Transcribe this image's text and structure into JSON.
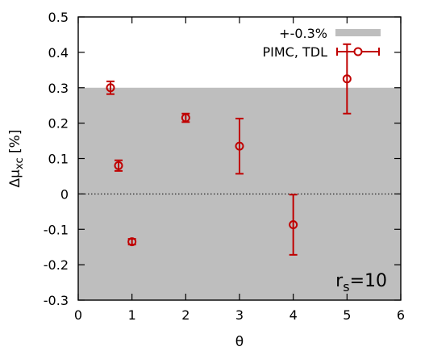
{
  "chart_data": {
    "type": "scatter",
    "title": "",
    "xlabel": "θ",
    "ylabel_main": "Δμ",
    "ylabel_sub": "xc",
    "ylabel_suffix": " [%]",
    "xlim": [
      0,
      6
    ],
    "ylim": [
      -0.3,
      0.5
    ],
    "x_ticks": [
      0,
      1,
      2,
      3,
      4,
      5,
      6
    ],
    "x_tick_labels": [
      "0",
      "1",
      "2",
      "3",
      "4",
      "5",
      "6"
    ],
    "y_ticks": [
      -0.3,
      -0.2,
      -0.1,
      0,
      0.1,
      0.2,
      0.3,
      0.4,
      0.5
    ],
    "y_tick_labels": [
      "-0.3",
      "-0.2",
      "-0.1",
      "0",
      "0.1",
      "0.2",
      "0.3",
      "0.4",
      "0.5"
    ],
    "grid": false,
    "legend_position": "top-right",
    "band": {
      "name": "+-0.3%",
      "lower": -0.3,
      "upper": 0.3,
      "color": "#bebebe"
    },
    "zero_line": {
      "y": 0,
      "style": "dotted"
    },
    "series": [
      {
        "name": "PIMC, TDL",
        "color": "#c00000",
        "marker": "open-circle",
        "points": [
          {
            "x": 0.6,
            "y": 0.3,
            "err": 0.018
          },
          {
            "x": 0.75,
            "y": 0.08,
            "err": 0.015
          },
          {
            "x": 1.0,
            "y": -0.135,
            "err": 0.008
          },
          {
            "x": 2.0,
            "y": 0.215,
            "err": 0.012
          },
          {
            "x": 3.0,
            "y": 0.135,
            "err": 0.078
          },
          {
            "x": 4.0,
            "y": -0.087,
            "err": 0.085
          },
          {
            "x": 5.0,
            "y": 0.325,
            "err": 0.098
          }
        ]
      }
    ],
    "annotation": {
      "main": "r",
      "sub": "s",
      "suffix": "=10"
    }
  }
}
